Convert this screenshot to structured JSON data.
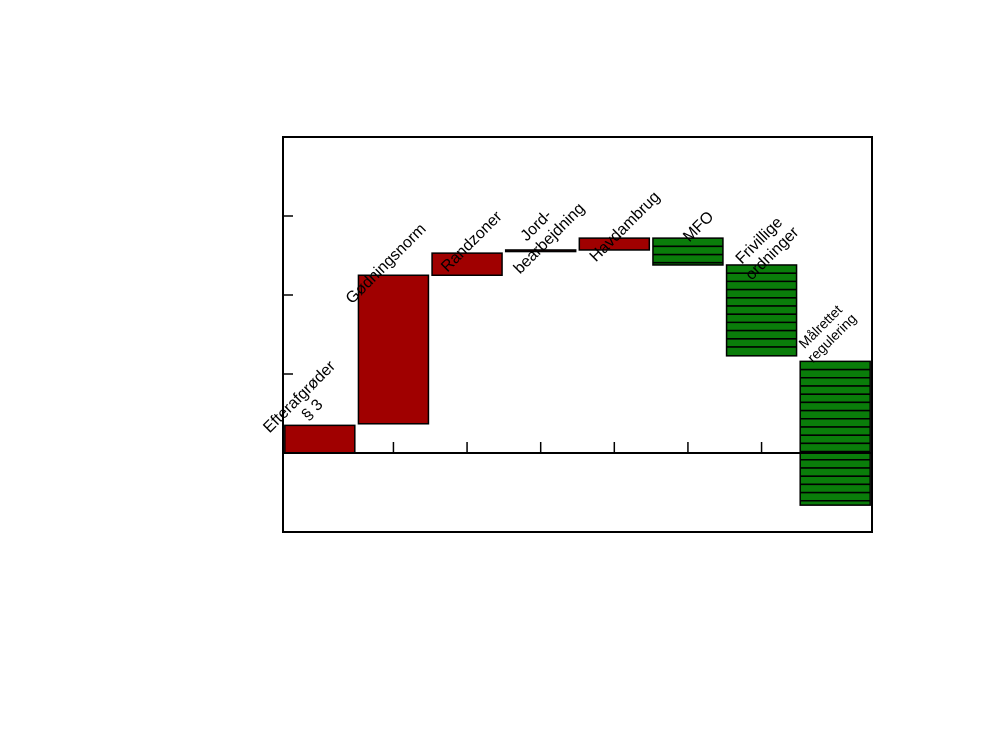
{
  "chart_data": {
    "type": "bar",
    "subtype": "waterfall",
    "title": "",
    "xlabel": "",
    "ylabel": "",
    "ylim": [
      -1,
      4
    ],
    "grid": false,
    "legend": "none",
    "categories": [
      {
        "label_lines": [
          "Efterafgrøder",
          "§ 3"
        ]
      },
      {
        "label_lines": [
          "Gødningsnorm"
        ]
      },
      {
        "label_lines": [
          "Randzoner"
        ]
      },
      {
        "label_lines": [
          "Jord-",
          "bearbejdning"
        ]
      },
      {
        "label_lines": [
          "Havdambrug"
        ]
      },
      {
        "label_lines": [
          "MFO"
        ]
      },
      {
        "label_lines": [
          "Frivillige",
          "ordninger"
        ]
      },
      {
        "label_lines": [
          "Målrettet",
          "regulering"
        ]
      }
    ],
    "bars": [
      {
        "start": 0.0,
        "end": 0.35,
        "kind": "increase"
      },
      {
        "start": 0.37,
        "end": 2.25,
        "kind": "increase"
      },
      {
        "start": 2.25,
        "end": 2.53,
        "kind": "increase"
      },
      {
        "start": 2.55,
        "end": 2.57,
        "kind": "increase"
      },
      {
        "start": 2.57,
        "end": 2.72,
        "kind": "increase"
      },
      {
        "start": 2.72,
        "end": 2.38,
        "kind": "decrease"
      },
      {
        "start": 2.38,
        "end": 1.23,
        "kind": "decrease"
      },
      {
        "start": 1.16,
        "end": -0.66,
        "kind": "decrease"
      }
    ],
    "colors": {
      "increase": "#a00000",
      "decrease": "#0a7d0a",
      "stripes": "#000000"
    }
  }
}
